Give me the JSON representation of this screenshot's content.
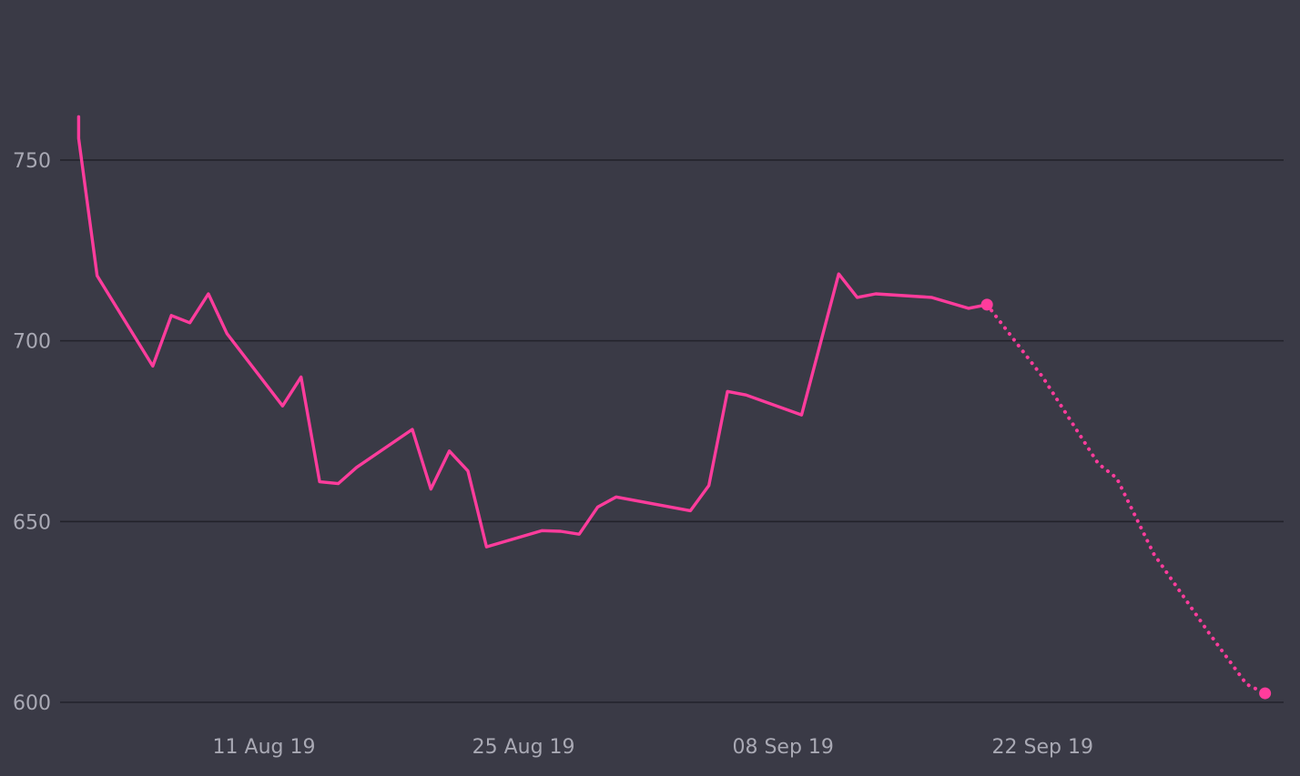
{
  "colors": {
    "background": "#3a3a46",
    "series": "#ff3c9c",
    "grid": "#23232b",
    "tick_text": "#a9a9b4"
  },
  "chart_data": {
    "type": "line",
    "title": "",
    "xlabel": "",
    "ylabel": "",
    "ylim": [
      600,
      790
    ],
    "xlim": [
      "2019-07-31",
      "2019-10-05"
    ],
    "y_ticks": [
      {
        "value": 600,
        "label": "600"
      },
      {
        "value": 650,
        "label": "650"
      },
      {
        "value": 700,
        "label": "700"
      },
      {
        "value": 750,
        "label": "750"
      }
    ],
    "x_ticks": [
      {
        "value": "2019-08-11",
        "label": "11 Aug 19"
      },
      {
        "value": "2019-08-25",
        "label": "25 Aug 19"
      },
      {
        "value": "2019-09-08",
        "label": "08 Sep 19"
      },
      {
        "value": "2019-09-22",
        "label": "22 Sep 19"
      }
    ],
    "grid": "horizontal",
    "legend": "none",
    "series": [
      {
        "style": "solid",
        "points": [
          {
            "x": "2019-08-01",
            "y": 762
          },
          {
            "x": "2019-08-01",
            "y": 756
          },
          {
            "x": "2019-08-02",
            "y": 718
          },
          {
            "x": "2019-08-05",
            "y": 693
          },
          {
            "x": "2019-08-06",
            "y": 707
          },
          {
            "x": "2019-08-07",
            "y": 705
          },
          {
            "x": "2019-08-08",
            "y": 713
          },
          {
            "x": "2019-08-09",
            "y": 702
          },
          {
            "x": "2019-08-12",
            "y": 682
          },
          {
            "x": "2019-08-13",
            "y": 690
          },
          {
            "x": "2019-08-14",
            "y": 661
          },
          {
            "x": "2019-08-15",
            "y": 660.5
          },
          {
            "x": "2019-08-16",
            "y": 665
          },
          {
            "x": "2019-08-19",
            "y": 675.5
          },
          {
            "x": "2019-08-20",
            "y": 659
          },
          {
            "x": "2019-08-21",
            "y": 669.5
          },
          {
            "x": "2019-08-22",
            "y": 664
          },
          {
            "x": "2019-08-23",
            "y": 643
          },
          {
            "x": "2019-08-26",
            "y": 647.5
          },
          {
            "x": "2019-08-27",
            "y": 647.3
          },
          {
            "x": "2019-08-28",
            "y": 646.5
          },
          {
            "x": "2019-08-29",
            "y": 654
          },
          {
            "x": "2019-08-30",
            "y": 656.8
          },
          {
            "x": "2019-09-03",
            "y": 653
          },
          {
            "x": "2019-09-04",
            "y": 660
          },
          {
            "x": "2019-09-05",
            "y": 686
          },
          {
            "x": "2019-09-06",
            "y": 685
          },
          {
            "x": "2019-09-09",
            "y": 679.5
          },
          {
            "x": "2019-09-11",
            "y": 718.5
          },
          {
            "x": "2019-09-12",
            "y": 712
          },
          {
            "x": "2019-09-13",
            "y": 713
          },
          {
            "x": "2019-09-16",
            "y": 712
          },
          {
            "x": "2019-09-17",
            "y": 710.5
          },
          {
            "x": "2019-09-18",
            "y": 709
          },
          {
            "x": "2019-09-19",
            "y": 710
          }
        ]
      },
      {
        "style": "dotted",
        "points": [
          {
            "x": "2019-09-19",
            "y": 710
          },
          {
            "x": "2019-09-22",
            "y": 690
          },
          {
            "x": "2019-09-25",
            "y": 666
          },
          {
            "x": "2019-09-26",
            "y": 662
          },
          {
            "x": "2019-09-28",
            "y": 641
          },
          {
            "x": "2019-10-01",
            "y": 619
          },
          {
            "x": "2019-10-03",
            "y": 605
          },
          {
            "x": "2019-10-04",
            "y": 602.5
          }
        ]
      }
    ],
    "markers": [
      {
        "x": "2019-09-19",
        "y": 710
      },
      {
        "x": "2019-10-04",
        "y": 602.5
      }
    ]
  }
}
